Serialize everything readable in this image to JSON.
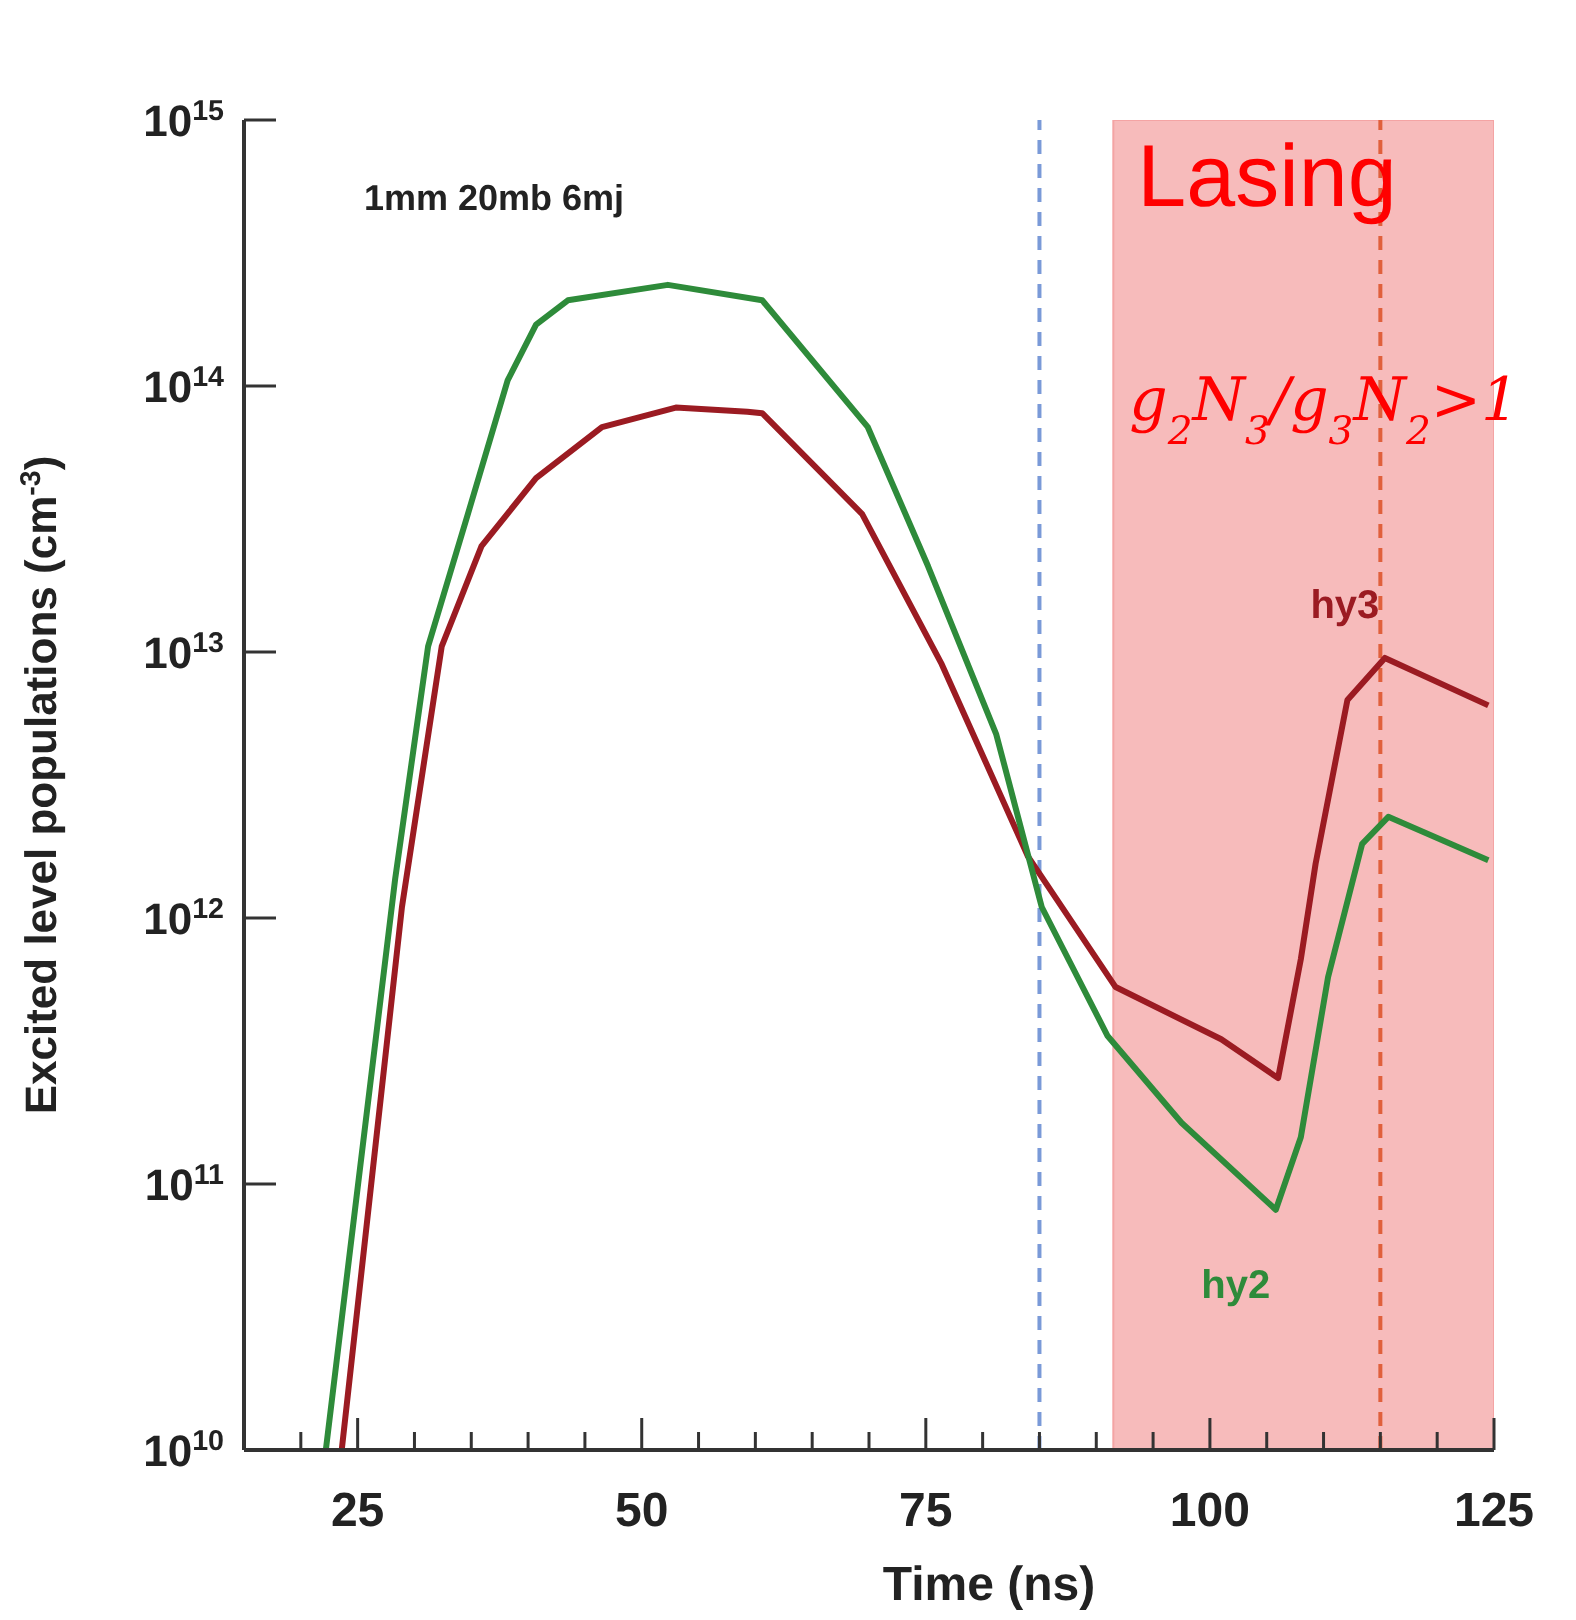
{
  "chart_data": {
    "type": "line",
    "xlabel": "Time  (ns)",
    "ylabel": "Excited level populations  (cm$^{-3}$)",
    "log": "y",
    "xlim": [
      15,
      125
    ],
    "ylim": [
      10000000000.0,
      1000000000000000.0
    ],
    "xticks": [
      {
        "value": 15,
        "label": null
      },
      {
        "value": 20,
        "label": null
      },
      25,
      {
        "value": 30,
        "label": null
      },
      {
        "value": 35,
        "label": null
      },
      {
        "value": 40,
        "label": null
      },
      {
        "value": 45,
        "label": null
      },
      50,
      {
        "value": 55,
        "label": null
      },
      {
        "value": 60,
        "label": null
      },
      {
        "value": 65,
        "label": null
      },
      {
        "value": 70,
        "label": null
      },
      75,
      {
        "value": 80,
        "label": null
      },
      {
        "value": 85,
        "label": null
      },
      {
        "value": 90,
        "label": null
      },
      {
        "value": 95,
        "label": null
      },
      100,
      {
        "value": 105,
        "label": null
      },
      {
        "value": 110,
        "label": null
      },
      {
        "value": 115,
        "label": null
      },
      {
        "value": 120,
        "label": null
      },
      125
    ],
    "yticks": [
      {
        "value": 10000000000.0,
        "label": "10$^{10}$"
      },
      {
        "value": 100000000000.0,
        "label": "10$^{11}$"
      },
      {
        "value": 1000000000000.0,
        "label": "10$^{12}$"
      },
      {
        "value": 10000000000000.0,
        "label": "10$^{13}$"
      },
      {
        "value": 100000000000000.0,
        "label": "10$^{14}$"
      },
      {
        "value": 1000000000000000.0,
        "label": "10$^{15}$"
      }
    ],
    "marker": "none",
    "line_style": "solid",
    "series": [
      {
        "name": "hy3",
        "color": "#9b1b22",
        "x": [
          23.6,
          28.9,
          32.4,
          35.9,
          40.7,
          46.5,
          53,
          59.3,
          60.6,
          69.4,
          76.4,
          84,
          91.7,
          101,
          106,
          108,
          109.3,
          112.1,
          115.4,
          124.5
        ],
        "values": [
          10000000000.0,
          1100000000000.0,
          10500000000000.0,
          25000000000000.0,
          45000000000000.0,
          70000000000000.0,
          83000000000000.0,
          80000000000000.0,
          79000000000000.0,
          33000000000000.0,
          9000000000000.0,
          1700000000000.0,
          550000000000.0,
          350000000000.0,
          250000000000.0,
          700000000000.0,
          1600000000000.0,
          6600000000000.0,
          9500000000000.0,
          6300000000000.0
        ]
      },
      {
        "name": "hy2",
        "color": "#2e8b3a",
        "x": [
          22.2,
          28.3,
          31.2,
          34.7,
          38.2,
          40.7,
          43.5,
          52.3,
          60.6,
          69.9,
          75.2,
          81.2,
          85.2,
          91,
          97.5,
          105.8,
          108,
          110.4,
          113.4,
          115.7,
          124.5
        ],
        "values": [
          10000000000.0,
          1400000000000.0,
          10500000000000.0,
          33000000000000.0,
          105000000000000.0,
          170000000000000.0,
          210000000000000.0,
          240000000000000.0,
          210000000000000.0,
          70000000000000.0,
          21000000000000.0,
          4900000000000.0,
          1100000000000.0,
          360000000000.0,
          170000000000.0,
          80000000000.0,
          150000000000.0,
          600000000000.0,
          1900000000000.0,
          2400000000000.0,
          1650000000000.0
        ]
      }
    ],
    "ref_lines": [
      {
        "axis": "x",
        "value": 85,
        "color": "#7a9ad8",
        "line_style": "dashed"
      },
      {
        "axis": "x",
        "value": 115,
        "color": "#e0603c",
        "line_style": "dashed"
      }
    ],
    "bands": [
      {
        "axis": "x",
        "from": 91.5,
        "to": 125,
        "label": "Lasing",
        "color": "#f4a4a4"
      }
    ],
    "annotations": [
      "1mm 20mb 6mj",
      "g$_{2}$N$_{3}$/g$_{3}$N$_{2}$>1"
    ]
  }
}
